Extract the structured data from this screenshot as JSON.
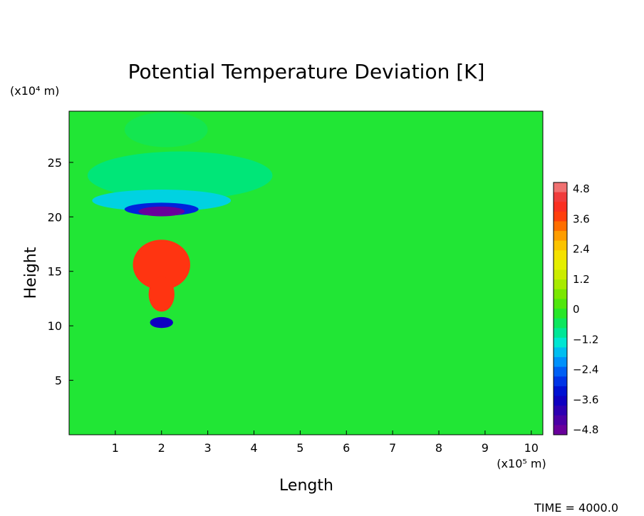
{
  "chart_data": {
    "type": "heatmap",
    "title": "Potential Temperature Deviation [K]",
    "xlabel": "Length",
    "ylabel": "Height",
    "x_unit_label": "(x10⁵ m)",
    "y_unit_label": "(x10⁴ m)",
    "xlim": [
      0,
      10.25
    ],
    "ylim": [
      0,
      29.7
    ],
    "xticks": [
      1,
      2,
      3,
      4,
      5,
      6,
      7,
      8,
      9,
      10
    ],
    "yticks": [
      5,
      10,
      15,
      20,
      25
    ],
    "colorbar": {
      "ticks": [
        "4.8",
        "3.6",
        "2.4",
        "1.2",
        "0",
        "−1.2",
        "−2.4",
        "−3.6",
        "−4.8"
      ],
      "range": [
        -5.2,
        5.2
      ]
    },
    "background_value": -0.3,
    "features": [
      {
        "x": 2.1,
        "y": 28.0,
        "rx": 0.9,
        "ry": 1.6,
        "value": -0.5
      },
      {
        "x": 2.4,
        "y": 23.8,
        "rx": 2.0,
        "ry": 2.2,
        "value": -0.8
      },
      {
        "x": 2.0,
        "y": 21.5,
        "rx": 1.5,
        "ry": 1.0,
        "value": -1.6
      },
      {
        "x": 2.0,
        "y": 20.7,
        "rx": 0.8,
        "ry": 0.6,
        "value": -3.2
      },
      {
        "x": 2.0,
        "y": 20.5,
        "rx": 0.5,
        "ry": 0.45,
        "value": -5.0
      },
      {
        "x": 2.0,
        "y": 15.6,
        "rx": 0.62,
        "ry": 2.3,
        "value": 3.9
      },
      {
        "x": 2.0,
        "y": 12.9,
        "rx": 0.28,
        "ry": 1.6,
        "value": 3.9
      },
      {
        "x": 2.0,
        "y": 10.3,
        "rx": 0.25,
        "ry": 0.5,
        "value": -3.8
      }
    ],
    "footer": "TIME =  4000.0"
  }
}
